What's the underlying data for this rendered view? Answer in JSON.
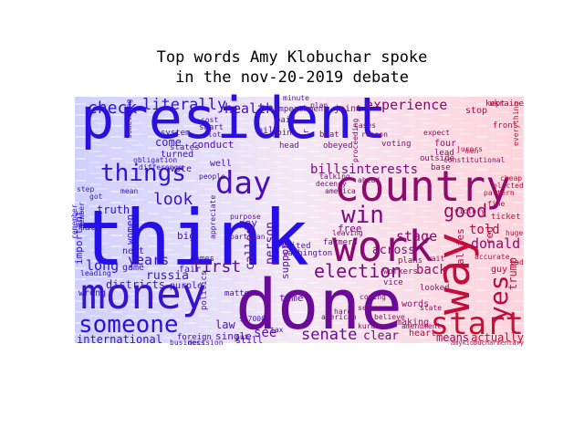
{
  "chart_data": {
    "type": "wordcloud",
    "title": "Top words Amy Klobuchar spoke\nin the nov-20-2019 debate",
    "background": "#ffffff",
    "gradient": {
      "left": "#1a12e6",
      "right": "#e4121c"
    },
    "words": [
      {
        "text": "president",
        "size": 62,
        "color": "#2a10dc"
      },
      {
        "text": "think",
        "size": 84,
        "color": "#2410e6"
      },
      {
        "text": "done",
        "size": 76,
        "color": "#6a0a98"
      },
      {
        "text": "money",
        "size": 46,
        "color": "#3812cc"
      },
      {
        "text": "work",
        "size": 46,
        "color": "#8a0870"
      },
      {
        "text": "country",
        "size": 46,
        "color": "#8e0a6c"
      },
      {
        "text": "way",
        "size": 50,
        "color": "#c80c3a"
      },
      {
        "text": "someone",
        "size": 26,
        "color": "#2a10dc"
      },
      {
        "text": "start",
        "size": 34,
        "color": "#d00c30"
      },
      {
        "text": "day",
        "size": 34,
        "color": "#4a0ebc"
      },
      {
        "text": "things",
        "size": 26,
        "color": "#3012d0"
      },
      {
        "text": "yes",
        "size": 28,
        "color": "#b80c48"
      },
      {
        "text": "win",
        "size": 26,
        "color": "#7a0a80"
      },
      {
        "text": "election",
        "size": 20,
        "color": "#7a0a80"
      },
      {
        "text": "good",
        "size": 20,
        "color": "#9a0a60"
      },
      {
        "text": "look",
        "size": 18,
        "color": "#3a12c8"
      },
      {
        "text": "first",
        "size": 18,
        "color": "#5a0ea8"
      },
      {
        "text": "senate",
        "size": 17,
        "color": "#6a0a98"
      },
      {
        "text": "check",
        "size": 18,
        "color": "#2a10dc"
      },
      {
        "text": "literally",
        "size": 17,
        "color": "#3012d0"
      },
      {
        "text": "health",
        "size": 15,
        "color": "#4a0ebc"
      },
      {
        "text": "experience",
        "size": 15,
        "color": "#8a0870"
      },
      {
        "text": "donald",
        "size": 15,
        "color": "#8e0a6c"
      },
      {
        "text": "billsinterests",
        "size": 14,
        "color": "#7a0a80"
      },
      {
        "text": "stage",
        "size": 15,
        "color": "#8a0870"
      },
      {
        "text": "told",
        "size": 14,
        "color": "#b80c48"
      },
      {
        "text": "back",
        "size": 14,
        "color": "#9a0a60"
      },
      {
        "text": "years",
        "size": 15,
        "color": "#3a12c8"
      },
      {
        "text": "long",
        "size": 15,
        "color": "#2a10dc"
      },
      {
        "text": "russia",
        "size": 13,
        "color": "#3a12c8"
      },
      {
        "text": "across",
        "size": 13,
        "color": "#7a0a80"
      },
      {
        "text": "clear",
        "size": 13,
        "color": "#7a0a80"
      },
      {
        "text": "means",
        "size": 12,
        "color": "#9a0a60"
      },
      {
        "text": "actually",
        "size": 12,
        "color": "#c80c3a"
      },
      {
        "text": "international",
        "size": 12,
        "color": "#2a10dc"
      },
      {
        "text": "districts",
        "size": 12,
        "color": "#3a12c8"
      },
      {
        "text": "law",
        "size": 12,
        "color": "#4a0ebc"
      },
      {
        "text": "see",
        "size": 14,
        "color": "#5a0ea8"
      },
      {
        "text": "truth",
        "size": 12,
        "color": "#2a10dc"
      },
      {
        "text": "made",
        "size": 11,
        "color": "#2a10dc"
      },
      {
        "text": "important",
        "size": 11,
        "color": "#2a10dc"
      },
      {
        "text": "come",
        "size": 12,
        "color": "#3a12c8"
      },
      {
        "text": "pay",
        "size": 11,
        "color": "#4a0ebc"
      },
      {
        "text": "time",
        "size": 11,
        "color": "#5a0ea8"
      },
      {
        "text": "person",
        "size": 13,
        "color": "#5a0ea8"
      },
      {
        "text": "called",
        "size": 13,
        "color": "#5a0ea8"
      },
      {
        "text": "support",
        "size": 11,
        "color": "#5a0ea8"
      },
      {
        "text": "free",
        "size": 11,
        "color": "#7a0a80"
      },
      {
        "text": "trump",
        "size": 12,
        "color": "#c80c3a"
      },
      {
        "text": "conduct",
        "size": 11,
        "color": "#4a0ebc"
      },
      {
        "text": "big",
        "size": 11,
        "color": "#3a12c8"
      },
      {
        "text": "women",
        "size": 11,
        "color": "#2a10dc"
      },
      {
        "text": "single",
        "size": 11,
        "color": "#4a0ebc"
      },
      {
        "text": "still",
        "size": 10,
        "color": "#4a0ebc"
      },
      {
        "text": "joint",
        "size": 10,
        "color": "#7a0a80"
      },
      {
        "text": "stop",
        "size": 10,
        "color": "#b80c48"
      },
      {
        "text": "allies",
        "size": 11,
        "color": "#b80c48"
      },
      {
        "text": "words",
        "size": 10,
        "color": "#9a0a60"
      },
      {
        "text": "making",
        "size": 10,
        "color": "#9a0a60"
      },
      {
        "text": "heart",
        "size": 10,
        "color": "#b80c48"
      },
      {
        "text": "guy",
        "size": 10,
        "color": "#b80c48"
      },
      {
        "text": "red",
        "size": 11,
        "color": "#c80c3a"
      },
      {
        "text": "four",
        "size": 10,
        "color": "#9a0a60"
      },
      {
        "text": "vote",
        "size": 10,
        "color": "#4a0ebc"
      },
      {
        "text": "fair",
        "size": 10,
        "color": "#3a12c8"
      },
      {
        "text": "next",
        "size": 10,
        "color": "#3a12c8"
      },
      {
        "text": "game",
        "size": 10,
        "color": "#3a12c8"
      },
      {
        "text": "purple",
        "size": 10,
        "color": "#3a12c8"
      },
      {
        "text": "wrong",
        "size": 10,
        "color": "#2a10dc"
      },
      {
        "text": "bill",
        "size": 10,
        "color": "#4a0ebc"
      },
      {
        "text": "well",
        "size": 10,
        "color": "#4a0ebc"
      },
      {
        "text": "turned",
        "size": 10,
        "color": "#3a12c8"
      },
      {
        "text": "impeachment",
        "size": 9,
        "color": "#5a0ea8"
      },
      {
        "text": "united",
        "size": 9,
        "color": "#5a0ea8"
      },
      {
        "text": "washington",
        "size": 9,
        "color": "#5a0ea8"
      },
      {
        "text": "matters",
        "size": 9,
        "color": "#4a0ebc"
      },
      {
        "text": "foreign",
        "size": 9,
        "color": "#3a12c8"
      },
      {
        "text": "ticket",
        "size": 9,
        "color": "#c80c3a"
      },
      {
        "text": "plans",
        "size": 9,
        "color": "#9a0a60"
      },
      {
        "text": "workers",
        "size": 9,
        "color": "#9a0a60"
      },
      {
        "text": "voting",
        "size": 9,
        "color": "#8a0870"
      },
      {
        "text": "farmers",
        "size": 9,
        "color": "#7a0a80"
      },
      {
        "text": "outside",
        "size": 9,
        "color": "#8e0a6c"
      },
      {
        "text": "base",
        "size": 9,
        "color": "#8e0a6c"
      },
      {
        "text": "kept",
        "size": 9,
        "color": "#b80c48"
      },
      {
        "text": "ukraine",
        "size": 9,
        "color": "#b80c48"
      },
      {
        "text": "system",
        "size": 9,
        "color": "#3a12c8"
      },
      {
        "text": "states",
        "size": 9,
        "color": "#3a12c8"
      },
      {
        "text": "smart",
        "size": 9,
        "color": "#4a0ebc"
      },
      {
        "text": "vice",
        "size": 9,
        "color": "#7a0a80"
      },
      {
        "text": "looked",
        "size": 9,
        "color": "#9a0a60"
      },
      {
        "text": "accurate",
        "size": 8,
        "color": "#b80c48"
      },
      {
        "text": "believe",
        "size": 8,
        "color": "#9a0a60"
      },
      {
        "text": "coming",
        "size": 8,
        "color": "#7a0a80"
      },
      {
        "text": "american",
        "size": 8,
        "color": "#7a0a80"
      },
      {
        "text": "decision",
        "size": 8,
        "color": "#4a0ebc"
      },
      {
        "text": "politics",
        "size": 9,
        "color": "#4a0ebc"
      },
      {
        "text": "comes",
        "size": 9,
        "color": "#3a12c8"
      },
      {
        "text": "lead",
        "size": 9,
        "color": "#8e0a6c"
      },
      {
        "text": "head",
        "size": 9,
        "color": "#5a0ea8"
      },
      {
        "text": "point",
        "size": 9,
        "color": "#5a0ea8"
      },
      {
        "text": "beat",
        "size": 9,
        "color": "#7a0a80"
      },
      {
        "text": "obeyed",
        "size": 9,
        "color": "#7a0a80"
      },
      {
        "text": "paid",
        "size": 9,
        "color": "#5a0ea8"
      },
      {
        "text": "front",
        "size": 9,
        "color": "#c80c3a"
      },
      {
        "text": "everything",
        "size": 8,
        "color": "#c80c3a"
      },
      {
        "text": "sense",
        "size": 8,
        "color": "#8a0870"
      },
      {
        "text": "kurds",
        "size": 8,
        "color": "#8a0870"
      },
      {
        "text": "state",
        "size": 8,
        "color": "#9a0a60"
      },
      {
        "text": "victory",
        "size": 8,
        "color": "#9a0a60"
      },
      {
        "text": "hard",
        "size": 8,
        "color": "#7a0a80"
      },
      {
        "text": "mr",
        "size": 9,
        "color": "#5a0ea8"
      },
      {
        "text": "cost",
        "size": 8,
        "color": "#4a0ebc"
      },
      {
        "text": "put",
        "size": 8,
        "color": "#5a0ea8"
      },
      {
        "text": "men",
        "size": 8,
        "color": "#b80c48"
      },
      {
        "text": "expect",
        "size": 8,
        "color": "#9a0a60"
      },
      {
        "text": "jurors",
        "size": 8,
        "color": "#b80c48"
      },
      {
        "text": "proceeding",
        "size": 8,
        "color": "#8a0870"
      },
      {
        "text": "lot",
        "size": 8,
        "color": "#5a0ea8"
      },
      {
        "text": "member",
        "size": 8,
        "color": "#2a10dc"
      },
      {
        "text": "remember",
        "size": 8,
        "color": "#2a10dc"
      },
      {
        "text": "step",
        "size": 8,
        "color": "#3a12c8"
      },
      {
        "text": "got",
        "size": 8,
        "color": "#3a12c8"
      },
      {
        "text": "mean",
        "size": 8,
        "color": "#3a12c8"
      },
      {
        "text": "something",
        "size": 8,
        "color": "#3a12c8"
      },
      {
        "text": "people",
        "size": 8,
        "color": "#4a0ebc"
      },
      {
        "text": "minute",
        "size": 8,
        "color": "#5a0ea8"
      },
      {
        "text": "plan",
        "size": 8,
        "color": "#5a0ea8"
      },
      {
        "text": "leading",
        "size": 8,
        "color": "#2a10dc"
      },
      {
        "text": "business",
        "size": 8,
        "color": "#3a12c8"
      },
      {
        "text": "decency",
        "size": 8,
        "color": "#7a0a80"
      },
      {
        "text": "america",
        "size": 8,
        "color": "#7a0a80"
      },
      {
        "text": "cases",
        "size": 8,
        "color": "#8a0870"
      },
      {
        "text": "reason",
        "size": 8,
        "color": "#8a0870"
      },
      {
        "text": "amendment",
        "size": 8,
        "color": "#9a0a60"
      },
      {
        "text": "constitutional",
        "size": 8,
        "color": "#9a0a60"
      },
      {
        "text": "talking",
        "size": 8,
        "color": "#7a0a80"
      },
      {
        "text": "ahead",
        "size": 8,
        "color": "#8a0870"
      },
      {
        "text": "pattern",
        "size": 8,
        "color": "#c80c3a"
      },
      {
        "text": "leaving",
        "size": 8,
        "color": "#8a0870"
      },
      {
        "text": "wait",
        "size": 8,
        "color": "#9a0a60"
      },
      {
        "text": "fine",
        "size": 8,
        "color": "#b80c48"
      },
      {
        "text": "huge",
        "size": 8,
        "color": "#c80c3a"
      },
      {
        "text": "bad",
        "size": 8,
        "color": "#c80c3a"
      },
      {
        "text": "cheap",
        "size": 8,
        "color": "#c80c3a"
      },
      {
        "text": "elected",
        "size": 8,
        "color": "#b80c48"
      },
      {
        "text": "tax",
        "size": 8,
        "color": "#4a0ebc"
      },
      {
        "text": "$17000",
        "size": 8,
        "color": "#4a0ebc"
      },
      {
        "text": "difference",
        "size": 8,
        "color": "#3a12c8"
      },
      {
        "text": "obligation",
        "size": 8,
        "color": "#3a12c8"
      },
      {
        "text": "appreciate",
        "size": 8,
        "color": "#4a0ebc"
      },
      {
        "text": "partisan",
        "size": 8,
        "color": "#5a0ea8"
      },
      {
        "text": "purpose",
        "size": 8,
        "color": "#5a0ea8"
      },
      {
        "text": "amykiobucharmentary",
        "size": 7,
        "color": "#b80c48"
      }
    ]
  }
}
